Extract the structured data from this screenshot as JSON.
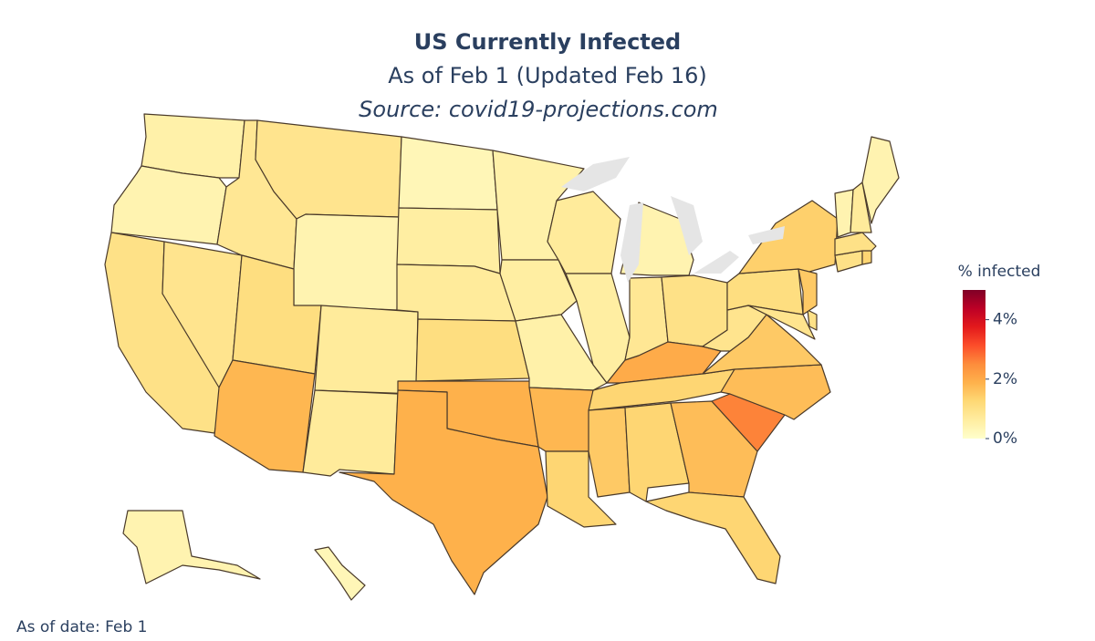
{
  "chart_data": {
    "type": "choropleth",
    "title": "US Currently Infected",
    "subtitle": "As of Feb 1 (Updated Feb 16)",
    "source": "Source: covid19-projections.com",
    "annotation": "As of date: Feb 1",
    "colorbar_title": "% infected",
    "zlim": [
      0,
      5
    ],
    "zticks": [
      {
        "value": 0,
        "label": "0%"
      },
      {
        "value": 2,
        "label": "2%"
      },
      {
        "value": 4,
        "label": "4%"
      }
    ],
    "colorscale": [
      [
        0,
        "#ffffcc"
      ],
      [
        0.125,
        "#ffeda0"
      ],
      [
        0.25,
        "#fed976"
      ],
      [
        0.375,
        "#feb24c"
      ],
      [
        0.5,
        "#fd8d3c"
      ],
      [
        0.625,
        "#fc4e2a"
      ],
      [
        0.75,
        "#e31a1c"
      ],
      [
        0.875,
        "#bd0026"
      ],
      [
        1,
        "#800026"
      ]
    ],
    "values": [
      0.5,
      0.4,
      1.0,
      0.9,
      0.8,
      0.9,
      0.4,
      1.1,
      1.8,
      0.7,
      0.7,
      0.3,
      0.6,
      0.7,
      1.1,
      1.9,
      1.9,
      0.5,
      0.6,
      0.5,
      1.8,
      1.3,
      0.7,
      0.6,
      0.4,
      0.8,
      1.0,
      2.0,
      1.3,
      1.5,
      1.3,
      1.7,
      1.3,
      2.6,
      1.7,
      1.5,
      0.9,
      1.1,
      1.4,
      0.9,
      1.0,
      1.5,
      1.0,
      1.3,
      1.0,
      0.4,
      0.7,
      0.4,
      0.4,
      0.3
    ]
  }
}
